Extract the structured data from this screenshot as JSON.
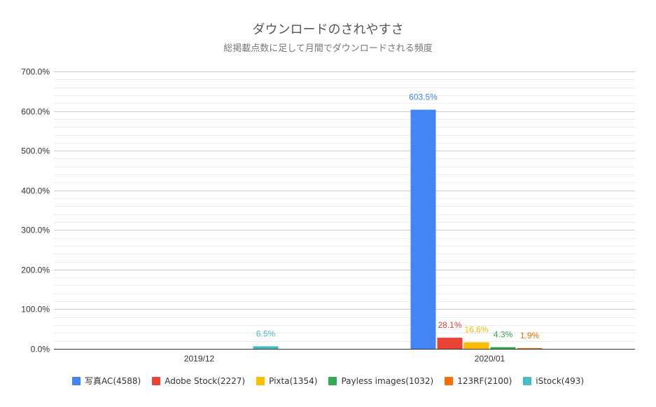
{
  "chart_data": {
    "type": "bar",
    "title": "ダウンロードのされやすさ",
    "subtitle": "総掲載点数に足して月間でダウンロードされる頻度",
    "categories": [
      "2019/12",
      "2020/01"
    ],
    "ylim": [
      0,
      700
    ],
    "yticks": [
      0,
      100,
      200,
      300,
      400,
      500,
      600,
      700
    ],
    "ytick_labels": [
      "0.0%",
      "100.0%",
      "200.0%",
      "300.0%",
      "400.0%",
      "500.0%",
      "600.0%",
      "700.0%"
    ],
    "minor_gridlines_per_major": 5,
    "grid": true,
    "legend_position": "bottom",
    "series": [
      {
        "name": "写真AC(4588)",
        "color": "#4285f4",
        "values": [
          null,
          603.5
        ],
        "labels": [
          "",
          "603.5%"
        ]
      },
      {
        "name": "Adobe Stock(2227)",
        "color": "#ea4335",
        "values": [
          null,
          28.1
        ],
        "labels": [
          "",
          "28.1%"
        ]
      },
      {
        "name": "Pixta(1354)",
        "color": "#fbbc04",
        "values": [
          null,
          16.6
        ],
        "labels": [
          "",
          "16.6%"
        ]
      },
      {
        "name": "Payless images(1032)",
        "color": "#34a853",
        "values": [
          null,
          4.3
        ],
        "labels": [
          "",
          "4.3%"
        ]
      },
      {
        "name": "123RF(2100)",
        "color": "#ff6d01",
        "values": [
          null,
          1.9
        ],
        "labels": [
          "",
          "1.9%"
        ]
      },
      {
        "name": "iStock(493)",
        "color": "#46bdc6",
        "values": [
          6.5,
          null
        ],
        "labels": [
          "6.5%",
          ""
        ]
      }
    ]
  }
}
